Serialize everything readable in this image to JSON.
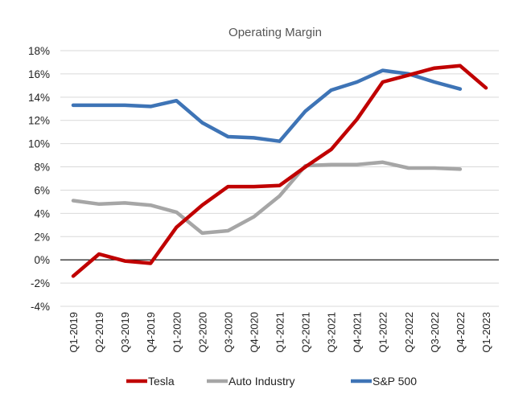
{
  "chart_data": {
    "type": "line",
    "title": "Operating Margin",
    "xlabel": "",
    "ylabel": "",
    "ylim": [
      -4,
      18
    ],
    "y_ticks": [
      -4,
      -2,
      0,
      2,
      4,
      6,
      8,
      10,
      12,
      14,
      16,
      18
    ],
    "y_tick_labels": [
      "-4%",
      "-2%",
      "0%",
      "2%",
      "4%",
      "6%",
      "8%",
      "10%",
      "12%",
      "14%",
      "16%",
      "18%"
    ],
    "grid": "horizontal",
    "legend_position": "bottom",
    "categories": [
      "Q1-2019",
      "Q2-2019",
      "Q3-2019",
      "Q4-2019",
      "Q1-2020",
      "Q2-2020",
      "Q3-2020",
      "Q4-2020",
      "Q1-2021",
      "Q2-2021",
      "Q3-2021",
      "Q4-2021",
      "Q1-2022",
      "Q2-2022",
      "Q3-2022",
      "Q4-2022",
      "Q1-2023"
    ],
    "series": [
      {
        "name": "Tesla",
        "color": "#c00000",
        "values": [
          -1.4,
          0.5,
          -0.1,
          -0.3,
          2.8,
          4.7,
          6.3,
          6.3,
          6.4,
          8.0,
          9.5,
          12.1,
          15.3,
          15.9,
          16.5,
          16.7,
          14.8
        ]
      },
      {
        "name": "Auto Industry",
        "color": "#a6a6a6",
        "values": [
          5.1,
          4.8,
          4.9,
          4.7,
          4.1,
          2.3,
          2.5,
          3.7,
          5.5,
          8.1,
          8.2,
          8.2,
          8.4,
          7.9,
          7.9,
          7.8,
          null
        ]
      },
      {
        "name": "S&P 500",
        "color": "#3e74b6",
        "values": [
          13.3,
          13.3,
          13.3,
          13.2,
          13.7,
          11.8,
          10.6,
          10.5,
          10.2,
          12.8,
          14.6,
          15.3,
          16.3,
          16.0,
          15.3,
          14.7,
          null
        ]
      }
    ]
  }
}
